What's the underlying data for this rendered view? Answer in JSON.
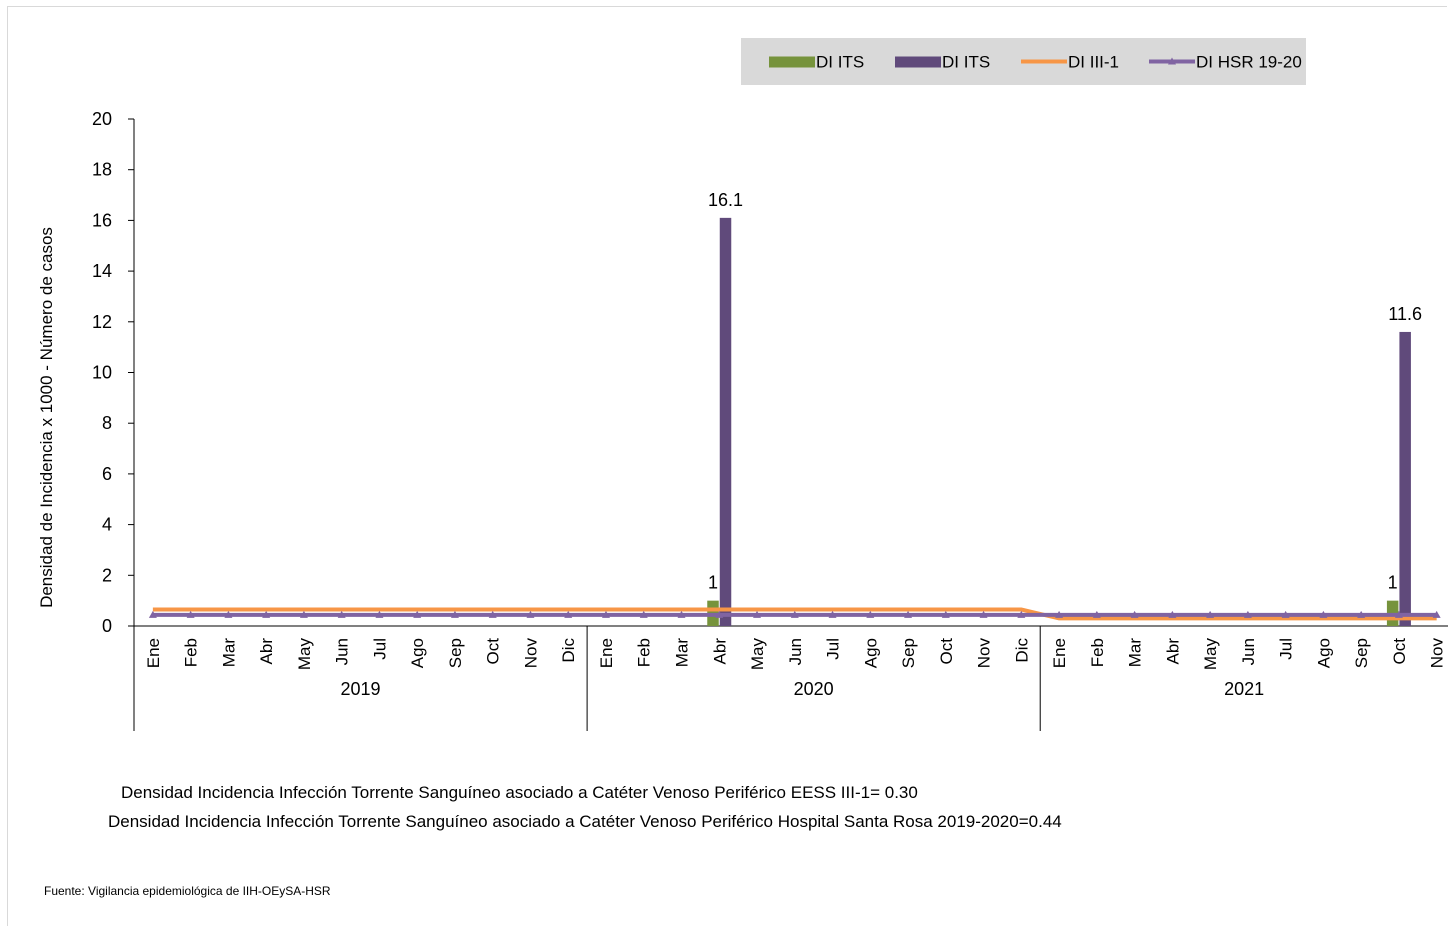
{
  "chart_data": {
    "type": "bar",
    "ylabel": "Densidad de Incidencia x 1000  - Número de casos",
    "ylim": [
      0,
      20
    ],
    "yticks": [
      0,
      2,
      4,
      6,
      8,
      10,
      12,
      14,
      16,
      18,
      20
    ],
    "categories": [
      "Ene",
      "Feb",
      "Mar",
      "Abr",
      "May",
      "Jun",
      "Jul",
      "Ago",
      "Sep",
      "Oct",
      "Nov",
      "Dic",
      "Ene",
      "Feb",
      "Mar",
      "Abr",
      "May",
      "Jun",
      "Jul",
      "Ago",
      "Sep",
      "Oct",
      "Nov",
      "Dic",
      "Ene",
      "Feb",
      "Mar",
      "Abr",
      "May",
      "Jun",
      "Jul",
      "Ago",
      "Sep",
      "Oct",
      "Nov"
    ],
    "year_groups": [
      {
        "label": "2019",
        "count": 12
      },
      {
        "label": "2020",
        "count": 12
      },
      {
        "label": "2021",
        "count": 11
      }
    ],
    "legend_position": "top-right",
    "series": [
      {
        "name": "DI ITS",
        "type": "bar",
        "color": "#76933c",
        "values": [
          0,
          0,
          0,
          0,
          0,
          0,
          0,
          0,
          0,
          0,
          0,
          0,
          0,
          0,
          0,
          1,
          0,
          0,
          0,
          0,
          0,
          0,
          0,
          0,
          0,
          0,
          0,
          0,
          0,
          0,
          0,
          0,
          0,
          1,
          0
        ]
      },
      {
        "name": "DI ITS",
        "type": "bar",
        "color": "#604a7b",
        "values": [
          0,
          0,
          0,
          0,
          0,
          0,
          0,
          0,
          0,
          0,
          0,
          0,
          0,
          0,
          0,
          16.1,
          0,
          0,
          0,
          0,
          0,
          0,
          0,
          0,
          0,
          0,
          0,
          0,
          0,
          0,
          0,
          0,
          0,
          11.6,
          0
        ]
      },
      {
        "name": "DI III-1",
        "type": "line",
        "color": "#f79646",
        "values": [
          0.65,
          0.65,
          0.65,
          0.65,
          0.65,
          0.65,
          0.65,
          0.65,
          0.65,
          0.65,
          0.65,
          0.65,
          0.65,
          0.65,
          0.65,
          0.65,
          0.65,
          0.65,
          0.65,
          0.65,
          0.65,
          0.65,
          0.65,
          0.65,
          0.3,
          0.3,
          0.3,
          0.3,
          0.3,
          0.3,
          0.3,
          0.3,
          0.3,
          0.3,
          0.3
        ]
      },
      {
        "name": "DI HSR 19-20",
        "type": "line",
        "marker": "triangle",
        "color": "#8064a2",
        "values": [
          0.44,
          0.44,
          0.44,
          0.44,
          0.44,
          0.44,
          0.44,
          0.44,
          0.44,
          0.44,
          0.44,
          0.44,
          0.44,
          0.44,
          0.44,
          0.44,
          0.44,
          0.44,
          0.44,
          0.44,
          0.44,
          0.44,
          0.44,
          0.44,
          0.44,
          0.44,
          0.44,
          0.44,
          0.44,
          0.44,
          0.44,
          0.44,
          0.44,
          0.44,
          0.44
        ]
      }
    ],
    "data_labels": [
      {
        "series": 0,
        "index": 15,
        "text": "1"
      },
      {
        "series": 1,
        "index": 15,
        "text": "16.1"
      },
      {
        "series": 0,
        "index": 33,
        "text": "1"
      },
      {
        "series": 1,
        "index": 33,
        "text": "11.6"
      }
    ],
    "legend_bg": "#d9d9d9"
  },
  "notes": {
    "line1": "Densidad Incidencia Infección Torrente Sanguíneo asociado a Catéter Venoso Periférico  EESS III-1= 0.30",
    "line2": "Densidad Incidencia Infección Torrente Sanguíneo asociado a Catéter Venoso Periférico Hospital  Santa Rosa 2019-2020=0.44"
  },
  "source": "Fuente: Vigilancia epidemiológica de IIH-OEySA-HSR"
}
